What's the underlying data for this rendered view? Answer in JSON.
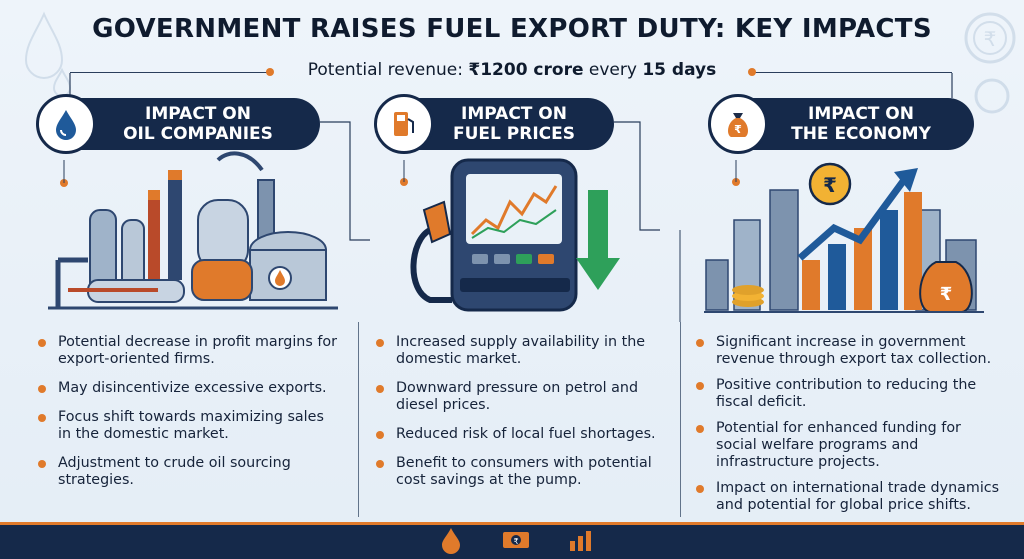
{
  "title": "GOVERNMENT RAISES FUEL EXPORT DUTY: KEY IMPACTS",
  "subtitle": {
    "prefix": "Potential revenue: ",
    "amount": "₹1200 crore",
    "middle": " every ",
    "period": "15 days"
  },
  "columns": [
    {
      "header": "IMPACT ON\nOIL COMPANIES",
      "icon": "oil-drop-icon",
      "bullets": [
        "Potential decrease in profit margins for export-oriented firms.",
        "May disincentivize excessive exports.",
        "Focus shift towards maximizing sales in the domestic market.",
        "Adjustment to crude oil sourcing strategies."
      ]
    },
    {
      "header": "IMPACT ON\nFUEL PRICES",
      "icon": "fuel-pump-icon",
      "bullets": [
        "Increased supply availability in the domestic market.",
        "Downward pressure on petrol and diesel prices.",
        "Reduced risk of local fuel shortages.",
        "Benefit to consumers with potential cost savings at the pump."
      ]
    },
    {
      "header": "IMPACT ON\nTHE ECONOMY",
      "icon": "money-bag-icon",
      "bullets": [
        "Significant increase in government revenue through export tax collection.",
        "Positive contribution to reducing the fiscal deficit.",
        "Potential for enhanced funding for social welfare programs and infrastructure projects.",
        "Impact on international trade dynamics and potential for global price shifts."
      ]
    }
  ],
  "colors": {
    "navy": "#15294a",
    "orange": "#e07a2b",
    "background": "#e9f1f8"
  },
  "footer_icons": [
    "oil-drop-icon",
    "money-bill-icon",
    "bar-chart-icon"
  ]
}
